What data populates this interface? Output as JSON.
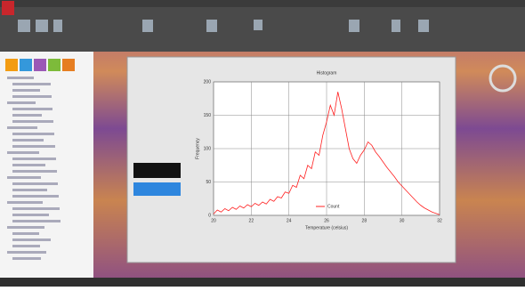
{
  "chart_data": {
    "type": "line",
    "title": "Histogram",
    "xlabel": "Temperature (celsius)",
    "ylabel": "Frequency",
    "x": [
      20.0,
      20.2,
      20.4,
      20.6,
      20.8,
      21.0,
      21.2,
      21.4,
      21.6,
      21.8,
      22.0,
      22.2,
      22.4,
      22.6,
      22.8,
      23.0,
      23.2,
      23.4,
      23.6,
      23.8,
      24.0,
      24.2,
      24.4,
      24.6,
      24.8,
      25.0,
      25.2,
      25.4,
      25.6,
      25.8,
      26.0,
      26.2,
      26.4,
      26.6,
      26.8,
      27.0,
      27.2,
      27.4,
      27.6,
      27.8,
      28.0,
      28.2,
      28.4,
      28.6,
      28.8,
      29.0,
      29.2,
      29.4,
      29.6,
      29.8,
      30.0,
      30.2,
      30.4,
      30.6,
      30.8,
      31.0,
      31.2,
      31.4,
      31.6,
      31.8,
      32.0
    ],
    "series": [
      {
        "name": "Count",
        "color": "#ff2020",
        "values": [
          2,
          8,
          5,
          10,
          7,
          12,
          9,
          14,
          11,
          16,
          13,
          18,
          15,
          20,
          17,
          24,
          21,
          28,
          26,
          35,
          33,
          45,
          42,
          60,
          55,
          75,
          70,
          95,
          90,
          120,
          140,
          165,
          150,
          185,
          160,
          130,
          100,
          85,
          78,
          90,
          98,
          110,
          105,
          95,
          88,
          80,
          72,
          65,
          58,
          50,
          44,
          38,
          32,
          26,
          20,
          15,
          11,
          8,
          5,
          3,
          1
        ]
      }
    ],
    "xlim": [
      20,
      32
    ],
    "xticks": [
      20,
      22,
      24,
      26,
      28,
      30,
      32
    ],
    "ylim": [
      0,
      200
    ],
    "yticks": [
      0,
      50,
      100,
      150,
      200
    ],
    "grid": true,
    "legend": "lower center"
  }
}
